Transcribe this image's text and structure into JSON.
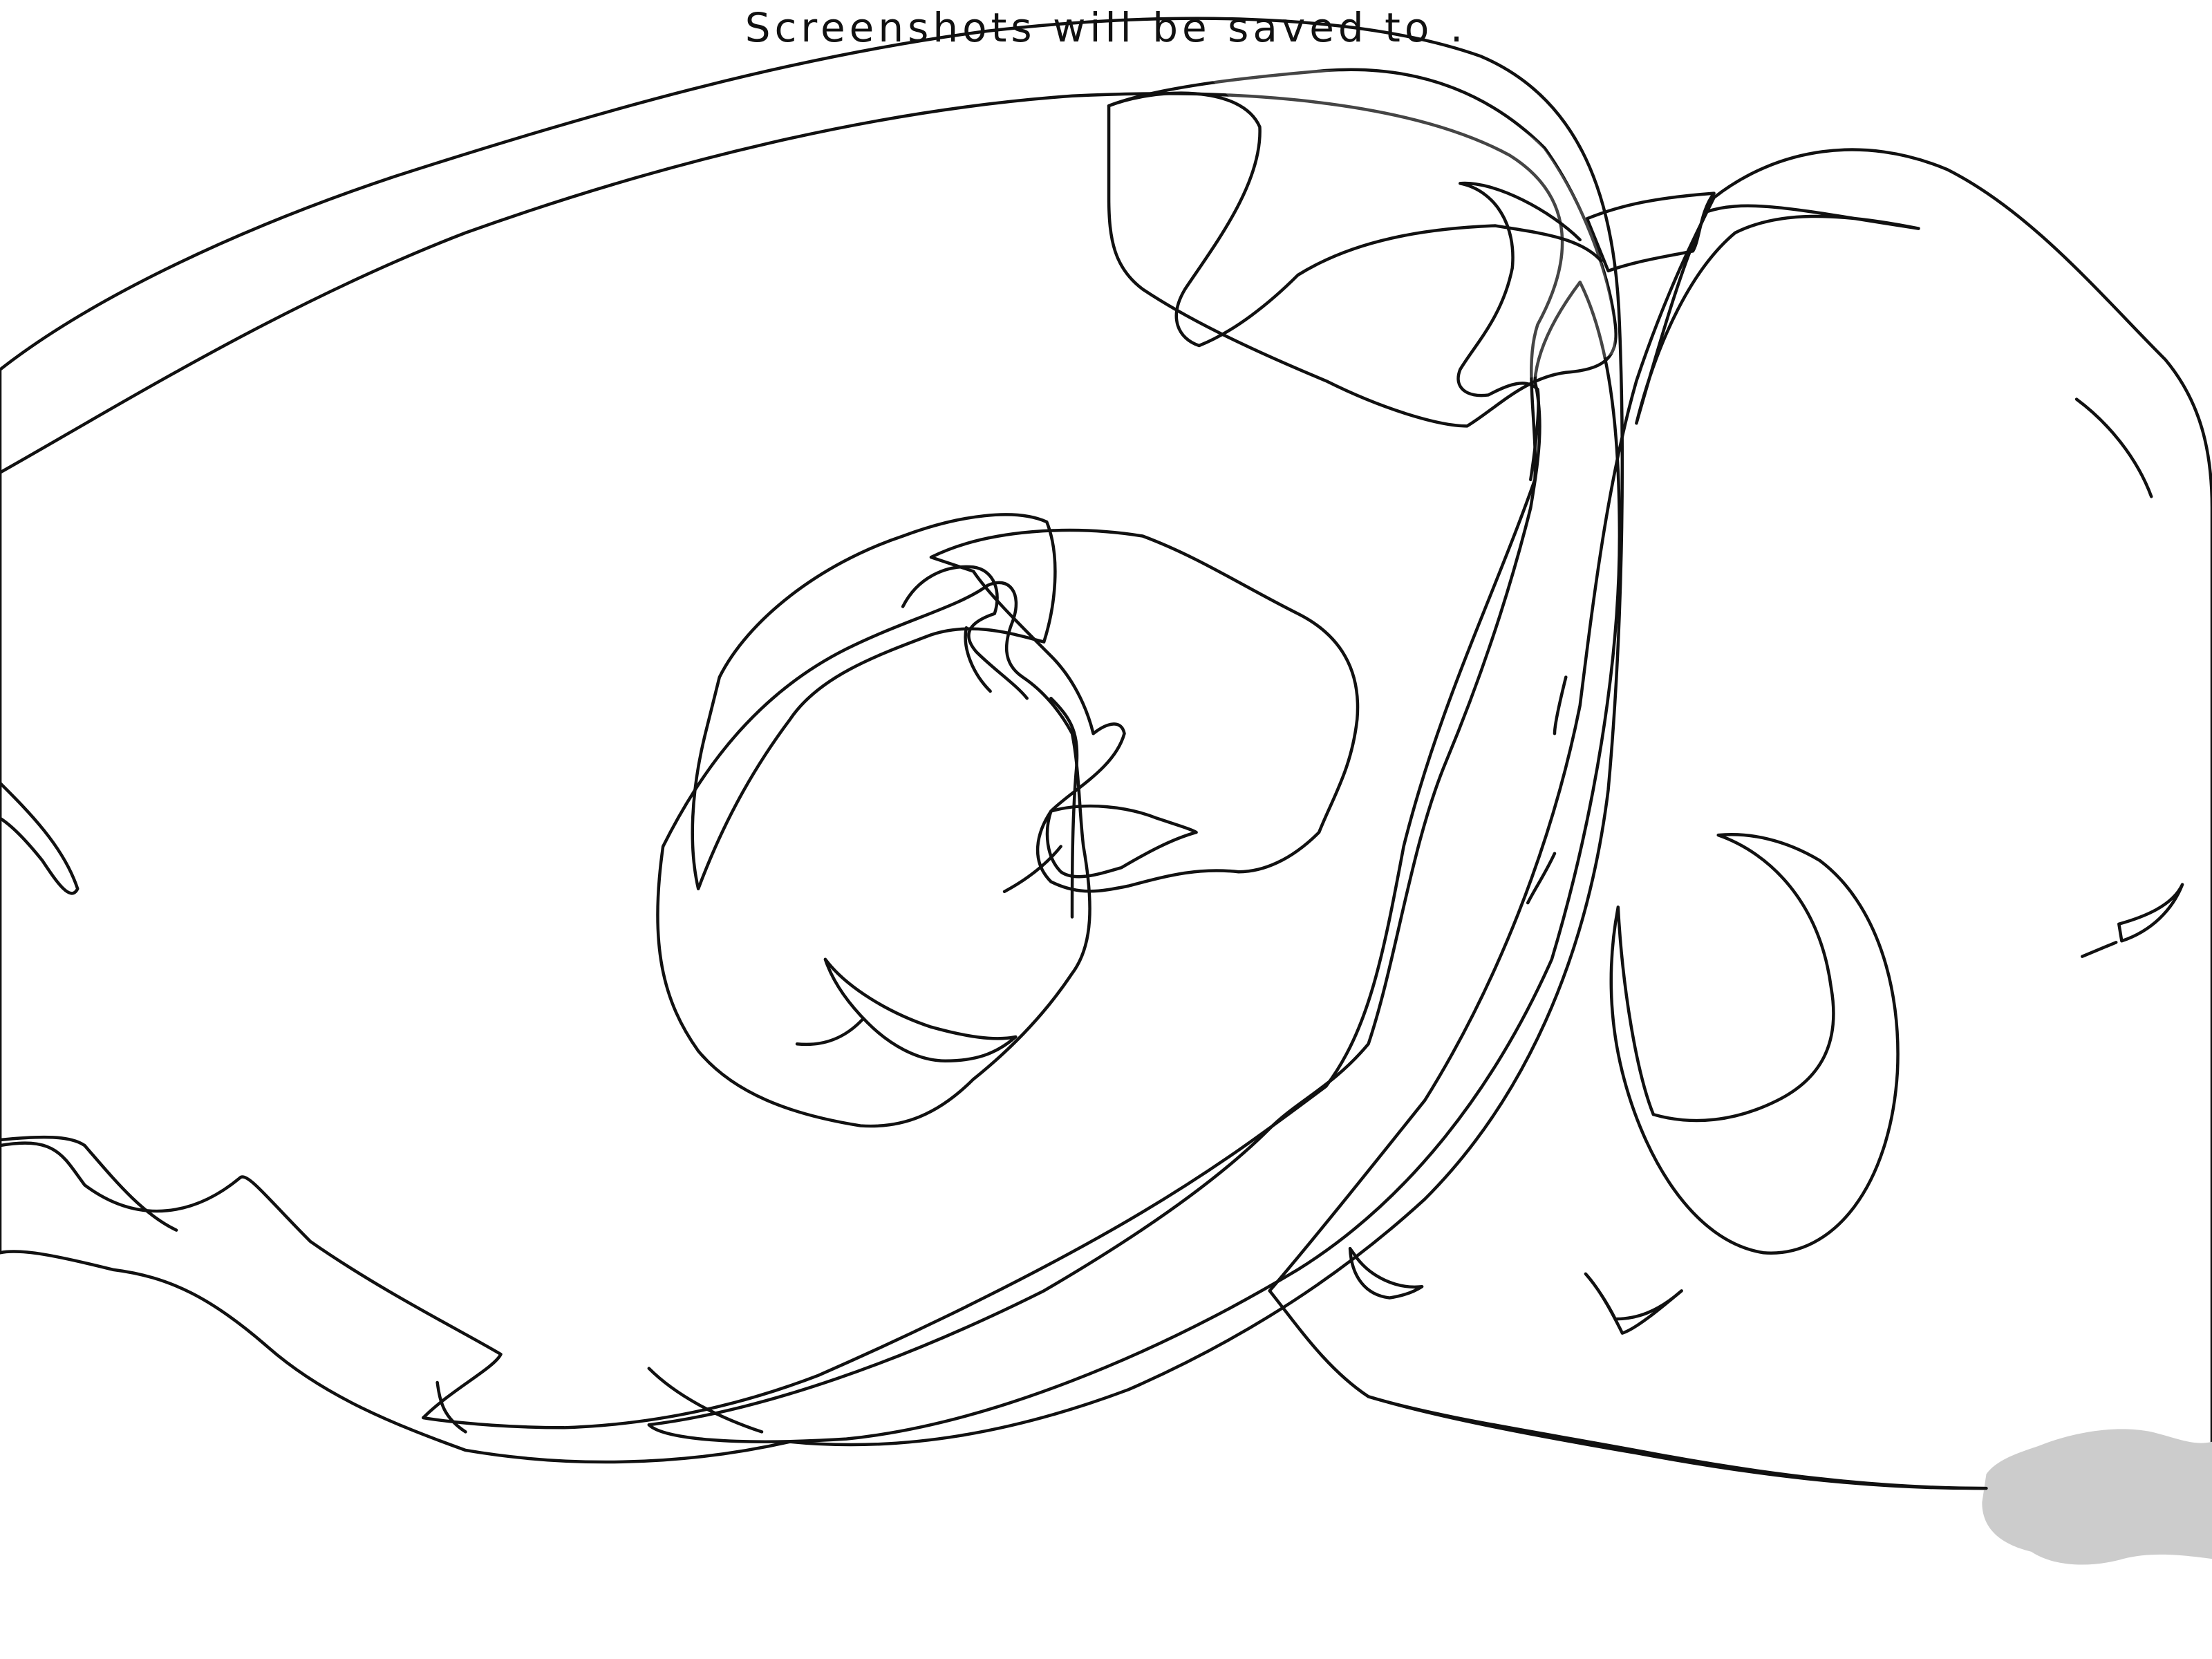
{
  "status_message": "Screenshots will be saved to .",
  "colors": {
    "background": "#ffffff",
    "outer_shell": "#ededed",
    "brain_fill": "#f4f4f5",
    "inner_band": "#e5e5e6",
    "cortex_region": "#7b57bc",
    "cortex_region_light": "#9a82c7",
    "striatum_dark": "#f79a80",
    "striatum_mid": "#f7bba8",
    "striatum_light": "#f7d8d2",
    "brainstem_gray": "#cccccc",
    "outline": "#111111"
  }
}
